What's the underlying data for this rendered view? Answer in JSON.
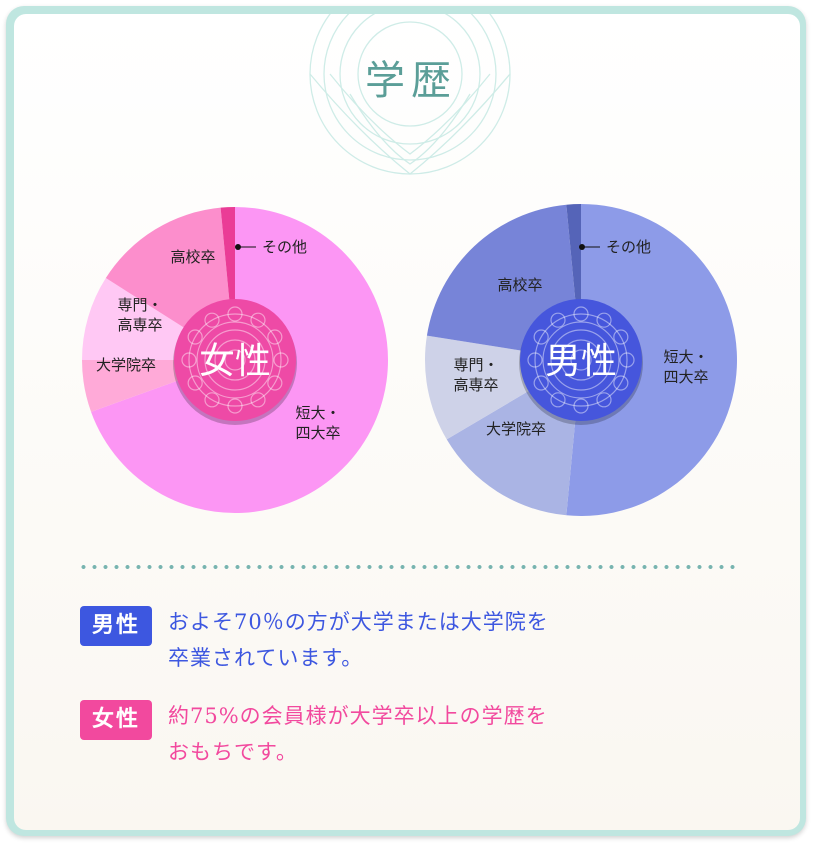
{
  "title": "学歴",
  "colors": {
    "accent_teal": "#5b9e98",
    "male_accent": "#3d57e0",
    "female_accent": "#f2499e"
  },
  "chart_data": [
    {
      "type": "pie",
      "center_label": "女性",
      "slices": [
        {
          "label_lines": [
            "短大・",
            "四大卒"
          ],
          "value": 69.5,
          "color": "#fc96f4"
        },
        {
          "label_lines": [
            "大学院卒"
          ],
          "value": 5.5,
          "color": "#ffaad8"
        },
        {
          "label_lines": [
            "専門・",
            "高専卒"
          ],
          "value": 9.0,
          "color": "#ffc8f4"
        },
        {
          "label_lines": [
            "高校卒"
          ],
          "value": 14.5,
          "color": "#fc8ecc"
        },
        {
          "label_lines": [
            "その他"
          ],
          "value": 1.5,
          "color": "#ea3c96"
        }
      ]
    },
    {
      "type": "pie",
      "center_label": "男性",
      "slices": [
        {
          "label_lines": [
            "短大・",
            "四大卒"
          ],
          "value": 51.5,
          "color": "#8d9be8"
        },
        {
          "label_lines": [
            "大学院卒"
          ],
          "value": 15.0,
          "color": "#aab4e4"
        },
        {
          "label_lines": [
            "専門・",
            "高専卒"
          ],
          "value": 11.0,
          "color": "#ced2e8"
        },
        {
          "label_lines": [
            "高校卒"
          ],
          "value": 21.0,
          "color": "#7784d8"
        },
        {
          "label_lines": [
            "その他"
          ],
          "value": 1.5,
          "color": "#5564b8"
        }
      ]
    }
  ],
  "notes": [
    {
      "tag": "男性",
      "lines": [
        "およそ70％の方が大学または大学院を",
        "卒業されています。"
      ],
      "color": "#3d57e0"
    },
    {
      "tag": "女性",
      "lines": [
        "約75%の会員様が大学卒以上の学歴を",
        "おもちです。"
      ],
      "color": "#f2499e"
    }
  ]
}
